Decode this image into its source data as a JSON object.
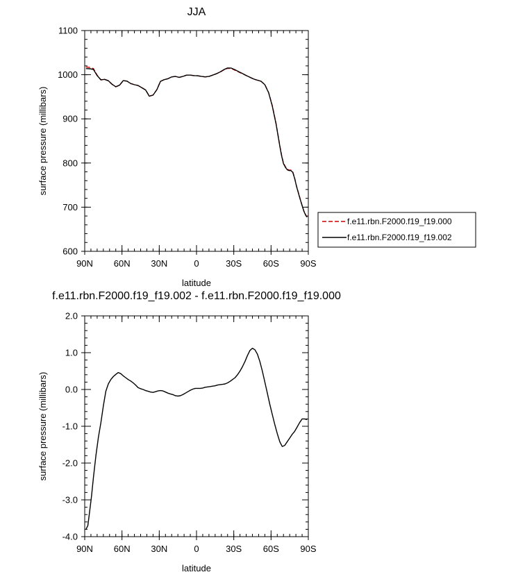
{
  "chart_data": [
    {
      "type": "line",
      "title": "JJA",
      "xlabel": "latitude",
      "ylabel": "surface pressure (millibars)",
      "xlim": [
        90,
        -90
      ],
      "ylim": [
        600,
        1100
      ],
      "x_ticks": [
        90,
        60,
        30,
        0,
        -30,
        -60,
        -90
      ],
      "x_tick_labels": [
        "90N",
        "60N",
        "30N",
        "0",
        "30S",
        "60S",
        "90S"
      ],
      "y_ticks": [
        600,
        700,
        800,
        900,
        1000,
        1100
      ],
      "y_tick_labels": [
        "600",
        "700",
        "800",
        "900",
        "1000",
        "1100"
      ],
      "legend_position": "right-outside",
      "series": [
        {
          "name": "f.e11.rbn.F2000.f19_f19.000",
          "color": "#cc0000",
          "dash": "dashed",
          "x": [
            89,
            86,
            83,
            80,
            77,
            74,
            71,
            68,
            65,
            62,
            59,
            56,
            53,
            50,
            47,
            44,
            41,
            38,
            35,
            32,
            29,
            26,
            23,
            20,
            17,
            14,
            11,
            8,
            5,
            2,
            -1,
            -4,
            -7,
            -10,
            -13,
            -16,
            -19,
            -22,
            -25,
            -28,
            -31,
            -34,
            -37,
            -40,
            -43,
            -46,
            -49,
            -52,
            -55,
            -58,
            -61,
            -64,
            -65.5,
            -67,
            -68.5,
            -70,
            -71.5,
            -73,
            -74.5,
            -76,
            -77.5,
            -79,
            -80.5,
            -82,
            -83.5,
            -85,
            -86.5,
            -88,
            -89
          ],
          "values": [
            1017.5,
            1016.5,
            1014,
            999,
            988,
            989.5,
            986,
            978,
            972.5,
            976,
            986.5,
            985.5,
            980,
            977.5,
            975.5,
            970.5,
            965.5,
            951.5,
            954,
            966,
            985,
            989,
            991,
            995,
            996,
            994,
            996,
            999,
            999,
            998,
            997.5,
            996,
            995,
            996,
            999,
            1002,
            1006,
            1011,
            1014.5,
            1014,
            1010,
            1006,
            1002,
            998,
            994,
            990,
            987.5,
            985,
            977.5,
            960,
            930,
            890,
            865,
            840,
            818,
            800,
            792,
            786,
            784,
            784,
            780,
            766,
            748,
            733,
            718,
            704,
            691,
            682,
            678
          ]
        },
        {
          "name": "f.e11.rbn.F2000.f19_f19.002",
          "color": "#000000",
          "dash": "solid",
          "x": [
            89,
            86,
            83,
            80,
            77,
            74,
            71,
            68,
            65,
            62,
            59,
            56,
            53,
            50,
            47,
            44,
            41,
            38,
            35,
            32,
            29,
            26,
            23,
            20,
            17,
            14,
            11,
            8,
            5,
            2,
            -1,
            -4,
            -7,
            -10,
            -13,
            -16,
            -19,
            -22,
            -25,
            -28,
            -31,
            -34,
            -37,
            -40,
            -43,
            -46,
            -49,
            -52,
            -55,
            -58,
            -61,
            -64,
            -65.5,
            -67,
            -68.5,
            -70,
            -71.5,
            -73,
            -74.5,
            -76,
            -77.5,
            -79,
            -80.5,
            -82,
            -83.5,
            -85,
            -86.5,
            -88,
            -89
          ],
          "values": [
            1013.8,
            1013.5,
            1012,
            998,
            988.5,
            989.5,
            986.5,
            978.5,
            972.8,
            976.2,
            986.6,
            985.6,
            980,
            977.4,
            975.4,
            970.4,
            965.4,
            951.3,
            953.8,
            965.8,
            984.9,
            988.9,
            990.9,
            995,
            996,
            994,
            996,
            999,
            999,
            998,
            997.6,
            996.1,
            995.1,
            996.1,
            999.1,
            1002.2,
            1006.3,
            1011.5,
            1015.3,
            1015,
            1011.1,
            1006.9,
            1002.6,
            998.3,
            994.3,
            990.2,
            987.6,
            985,
            977.3,
            959.3,
            929.1,
            888.9,
            863.8,
            838.6,
            816.6,
            798.6,
            790.6,
            784.7,
            782.8,
            782.9,
            779,
            765.1,
            747.2,
            732.2,
            717.3,
            703.3,
            690.2,
            681.2,
            677.2
          ]
        }
      ]
    },
    {
      "type": "line",
      "title": "f.e11.rbn.F2000.f19_f19.002 - f.e11.rbn.F2000.f19_f19.000",
      "xlabel": "latitude",
      "ylabel": "surface pressure (millibars)",
      "xlim": [
        90,
        -90
      ],
      "ylim": [
        -4.0,
        2.0
      ],
      "x_ticks": [
        90,
        60,
        30,
        0,
        -30,
        -60,
        -90
      ],
      "x_tick_labels": [
        "90N",
        "60N",
        "30N",
        "0",
        "30S",
        "60S",
        "90S"
      ],
      "y_ticks": [
        -4.0,
        -3.0,
        -2.0,
        -1.0,
        0.0,
        1.0,
        2.0
      ],
      "y_tick_labels": [
        "-4.0",
        "-3.0",
        "-2.0",
        "-1.0",
        "0.0",
        "1.0",
        "2.0"
      ],
      "series": [
        {
          "color": "#000000",
          "x": [
            89,
            87.5,
            86,
            84.5,
            83,
            81,
            79,
            77,
            75,
            73,
            71,
            69,
            67,
            65,
            63,
            61,
            59,
            57,
            55,
            53,
            51,
            49,
            47,
            45,
            43,
            41,
            39,
            37,
            35,
            33,
            31,
            29,
            27,
            25,
            23,
            21,
            19,
            17,
            15,
            13,
            11,
            9,
            7,
            5,
            3,
            1,
            -1,
            -3,
            -5,
            -7,
            -9,
            -11,
            -13,
            -15,
            -17,
            -19,
            -21,
            -23,
            -25,
            -27,
            -29,
            -31,
            -33,
            -35,
            -37,
            -39,
            -41,
            -43,
            -45,
            -47,
            -49,
            -51,
            -53,
            -55,
            -57,
            -59,
            -61,
            -63,
            -65,
            -67,
            -69,
            -71,
            -73,
            -75,
            -77,
            -79,
            -81,
            -83,
            -85,
            -87,
            -89
          ],
          "values": [
            -3.8,
            -3.7,
            -3.3,
            -2.9,
            -2.4,
            -1.8,
            -1.3,
            -0.9,
            -0.45,
            -0.05,
            0.15,
            0.27,
            0.35,
            0.41,
            0.46,
            0.43,
            0.37,
            0.32,
            0.27,
            0.23,
            0.18,
            0.12,
            0.05,
            0.02,
            0.0,
            -0.03,
            -0.05,
            -0.07,
            -0.08,
            -0.06,
            -0.04,
            -0.03,
            -0.04,
            -0.07,
            -0.1,
            -0.12,
            -0.14,
            -0.17,
            -0.18,
            -0.17,
            -0.14,
            -0.1,
            -0.06,
            -0.02,
            0.01,
            0.03,
            0.03,
            0.03,
            0.04,
            0.06,
            0.07,
            0.08,
            0.09,
            0.1,
            0.12,
            0.13,
            0.14,
            0.15,
            0.18,
            0.22,
            0.27,
            0.32,
            0.4,
            0.5,
            0.62,
            0.76,
            0.92,
            1.06,
            1.12,
            1.08,
            0.96,
            0.76,
            0.5,
            0.2,
            -0.1,
            -0.4,
            -0.68,
            -0.95,
            -1.2,
            -1.42,
            -1.55,
            -1.52,
            -1.42,
            -1.32,
            -1.22,
            -1.14,
            -1.02,
            -0.9,
            -0.8,
            -0.8,
            -0.82
          ]
        }
      ]
    }
  ]
}
